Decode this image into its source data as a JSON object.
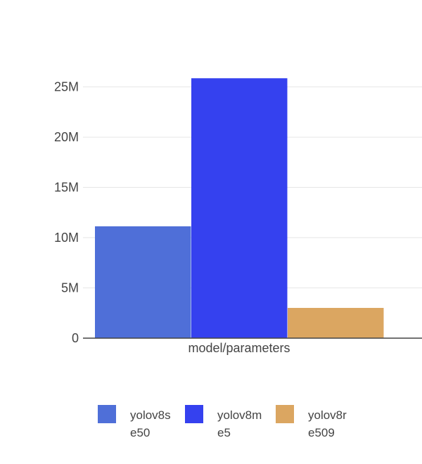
{
  "chart_data": {
    "type": "bar",
    "x_category": "model/parameters",
    "series": [
      {
        "name": "yolov8s e50",
        "label_lines": [
          "yolov8s",
          "e50"
        ],
        "value": 11130000,
        "color": "#4f6fd8"
      },
      {
        "name": "yolov8m e5",
        "label_lines": [
          "yolov8m",
          "e5"
        ],
        "value": 25860000,
        "color": "#3541ef"
      },
      {
        "name": "yolov8r e509",
        "label_lines": [
          "yolov8r",
          "e509"
        ],
        "value": 3010000,
        "color": "#dba661"
      }
    ],
    "ylim": [
      0,
      27000000
    ],
    "yticks": [
      0,
      5000000,
      10000000,
      15000000,
      20000000,
      25000000
    ],
    "ytick_labels": [
      "0",
      "5M",
      "10M",
      "15M",
      "20M",
      "25M"
    ],
    "grid": true,
    "legend_position": "bottom"
  }
}
